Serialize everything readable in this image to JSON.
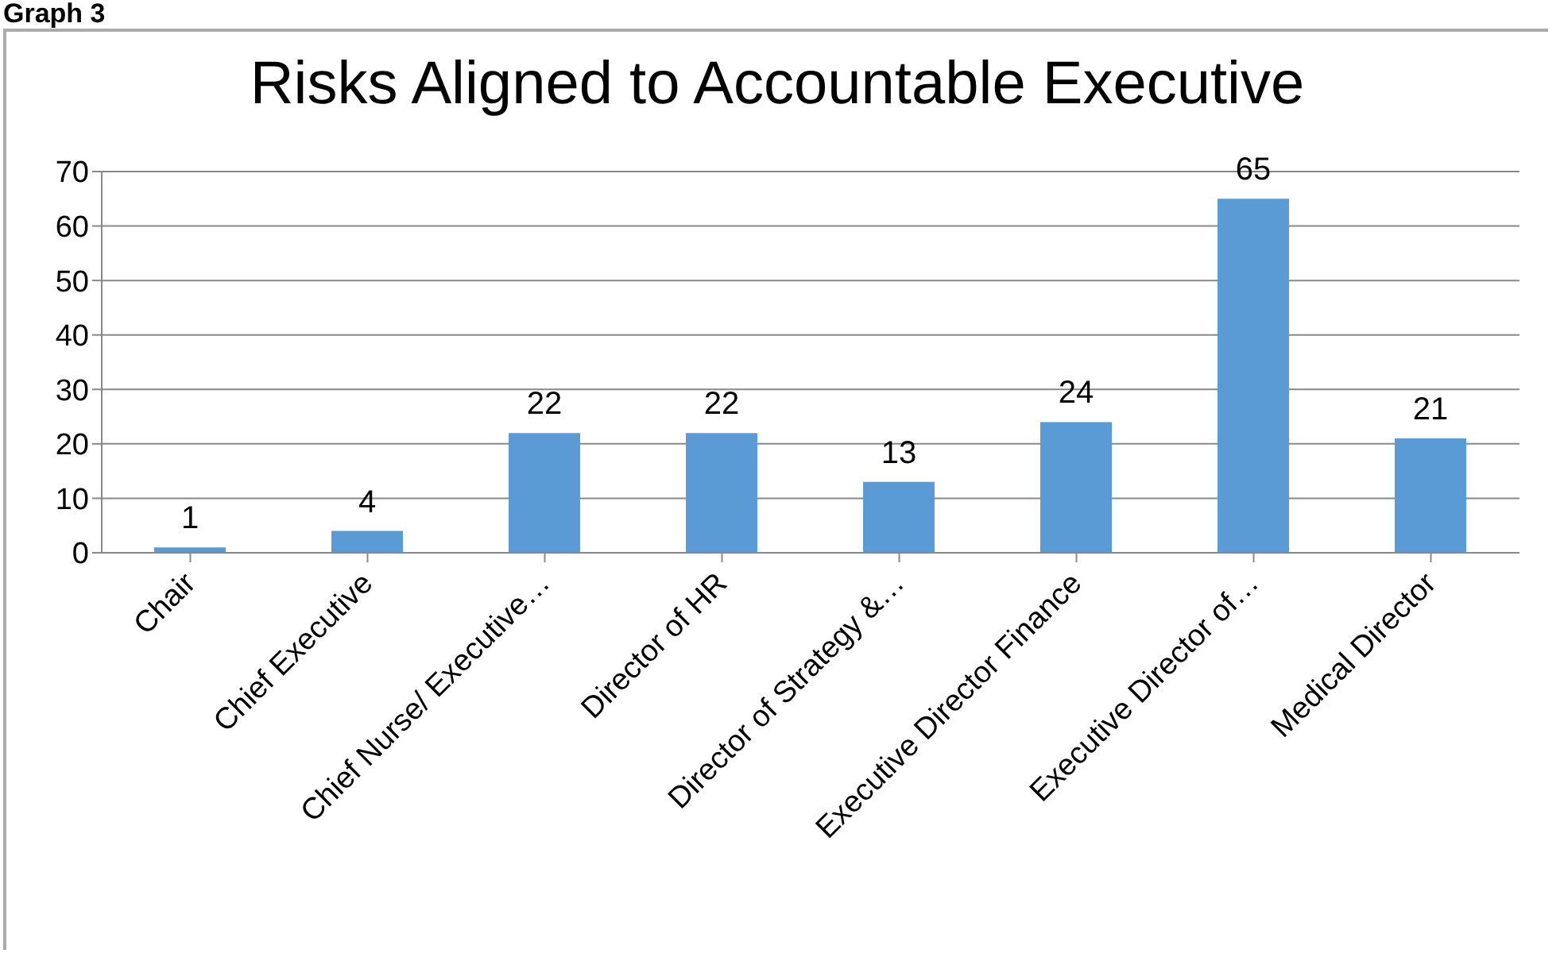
{
  "chart_data": {
    "type": "bar",
    "title": "Risks Aligned to Accountable Executive",
    "annotations": [
      "Graph 3"
    ],
    "categories": [
      "Chair",
      "Chief Executive",
      "Chief Nurse/ Executive…",
      "Director of HR",
      "Director of Strategy &…",
      "Executive Director Finance",
      "Executive Director of…",
      "Medical Director"
    ],
    "values": [
      1,
      4,
      22,
      22,
      13,
      24,
      65,
      21
    ],
    "color": "#5b9bd5",
    "ylim": [
      0,
      70
    ],
    "yticks": [
      0,
      10,
      20,
      30,
      40,
      50,
      60,
      70
    ],
    "grid": "y",
    "data_labels": true,
    "legend": false
  }
}
